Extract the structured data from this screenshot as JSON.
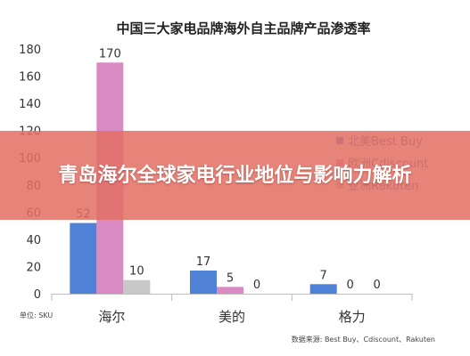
{
  "overlay": {
    "headline": "青岛海尔全球家电行业地位与影响力解析"
  },
  "chart_data": {
    "type": "bar",
    "title": "中国三大家电品牌海外自主品牌产品渗透率",
    "categories": [
      "海尔",
      "美的",
      "格力"
    ],
    "series": [
      {
        "name": "北美Best Buy",
        "color": "#4f81d6",
        "values": [
          52,
          17,
          7
        ]
      },
      {
        "name": "欧洲Cdiscount",
        "color": "#d98ac2",
        "values": [
          170,
          5,
          0
        ]
      },
      {
        "name": "亚洲Rakuten",
        "color": "#c8c8c8",
        "values": [
          10,
          0,
          0
        ]
      }
    ],
    "ylim": [
      0,
      180
    ],
    "yticks": [
      "0",
      "20",
      "40",
      "60",
      "80",
      "100",
      "120",
      "140",
      "160",
      "180"
    ],
    "unit_note": "单位: SKU",
    "source_note": "数据来源: Best Buy、Cdiscount、Rakuten",
    "legend_position": "right",
    "grid": false
  }
}
